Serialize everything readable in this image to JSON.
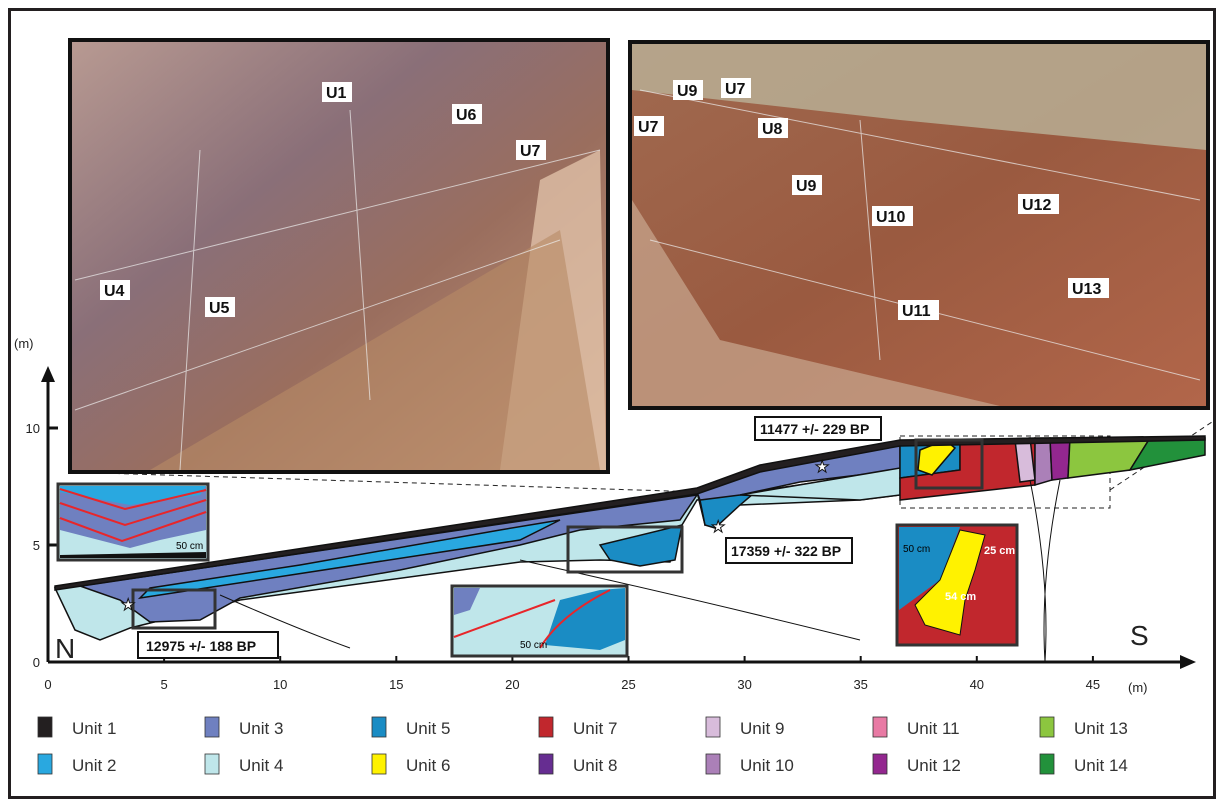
{
  "photos": {
    "left": {
      "labels": [
        "U1",
        "U6",
        "U7",
        "U4",
        "U5"
      ]
    },
    "right": {
      "labels": [
        "U9",
        "U7",
        "U7",
        "U8",
        "U9",
        "U10",
        "U12",
        "U11",
        "U13"
      ]
    }
  },
  "axes": {
    "y_unit": "(m)",
    "x_unit": "(m)",
    "y_ticks": [
      "0",
      "5",
      "10"
    ],
    "x_ticks": [
      "0",
      "5",
      "10",
      "15",
      "20",
      "25",
      "30",
      "35",
      "40",
      "45"
    ]
  },
  "orientation": {
    "north": "N",
    "south": "S"
  },
  "dates": [
    "12975 +/- 188 BP",
    "17359 +/- 322 BP",
    "11477 +/- 229 BP"
  ],
  "insets": {
    "scale_left": "50 cm",
    "scale_middle": "50 cm",
    "scale_right": "50 cm",
    "measure_a": "25 cm",
    "measure_b": "54 cm"
  },
  "legend": [
    {
      "label": "Unit 1",
      "color": "#231f20"
    },
    {
      "label": "Unit 2",
      "color": "#29a8e0"
    },
    {
      "label": "Unit 3",
      "color": "#6f80c0"
    },
    {
      "label": "Unit 4",
      "color": "#bfe6ea"
    },
    {
      "label": "Unit 5",
      "color": "#1a8cc4"
    },
    {
      "label": "Unit 6",
      "color": "#fff200"
    },
    {
      "label": "Unit 7",
      "color": "#c1272d"
    },
    {
      "label": "Unit 8",
      "color": "#662d91"
    },
    {
      "label": "Unit 9",
      "color": "#d8bcdb"
    },
    {
      "label": "Unit 10",
      "color": "#ab80b8"
    },
    {
      "label": "Unit 11",
      "color": "#e87aa4"
    },
    {
      "label": "Unit 12",
      "color": "#93278f"
    },
    {
      "label": "Unit 13",
      "color": "#8cc63f"
    },
    {
      "label": "Unit 14",
      "color": "#22913b"
    }
  ]
}
